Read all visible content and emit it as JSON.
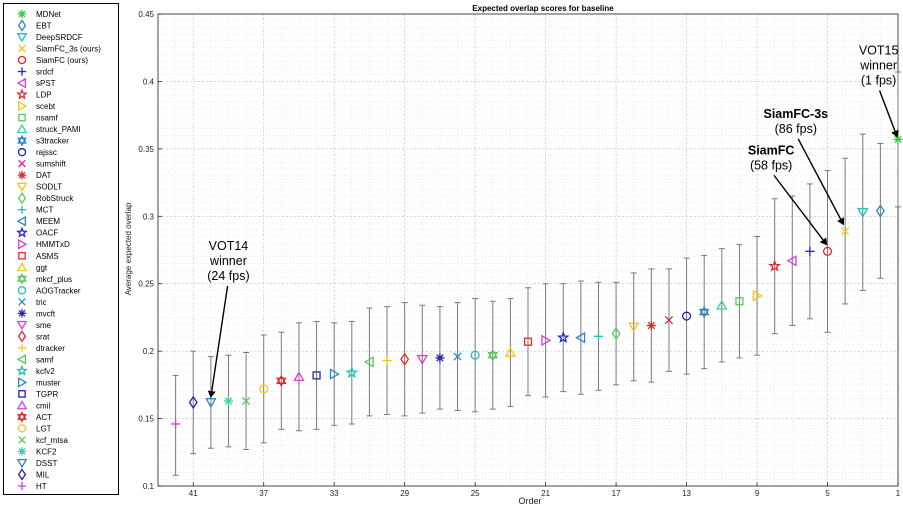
{
  "chart_data": {
    "type": "scatter",
    "title": "Expected overlap scores for baseline",
    "xlabel": "Order",
    "ylabel": "Average expected overlap",
    "xlim": [
      43,
      1
    ],
    "ylim": [
      0.1,
      0.45
    ],
    "x_ticks": [
      41,
      37,
      33,
      29,
      25,
      21,
      17,
      13,
      9,
      5,
      1
    ],
    "y_ticks": [
      0.1,
      0.15,
      0.2,
      0.25,
      0.3,
      0.35,
      0.4,
      0.45
    ],
    "grid": true,
    "legend_position": "outside-left",
    "series": [
      {
        "name": "MDNet",
        "marker": "asterisk",
        "color": "#33cc33",
        "order": 1,
        "value": 0.357,
        "lo": 0.307,
        "hi": 0.407
      },
      {
        "name": "EBT",
        "marker": "diamond",
        "color": "#2e86c1",
        "order": 2,
        "value": 0.304,
        "lo": 0.254,
        "hi": 0.354
      },
      {
        "name": "DeepSRDCF",
        "marker": "triangle-down",
        "color": "#17c3b2",
        "order": 3,
        "value": 0.303,
        "lo": 0.245,
        "hi": 0.361
      },
      {
        "name": "SiamFC_3s (ours)",
        "marker": "x",
        "color": "#f5c518",
        "order": 4,
        "value": 0.289,
        "lo": 0.235,
        "hi": 0.343
      },
      {
        "name": "SiamFC (ours)",
        "marker": "circle",
        "color": "#e5262b",
        "order": 5,
        "value": 0.274,
        "lo": 0.214,
        "hi": 0.334
      },
      {
        "name": "srdcf",
        "marker": "plus",
        "color": "#2424d6",
        "order": 6,
        "value": 0.274,
        "lo": 0.224,
        "hi": 0.324
      },
      {
        "name": "sPST",
        "marker": "triangle-left",
        "color": "#d63ed6",
        "order": 7,
        "value": 0.267,
        "lo": 0.219,
        "hi": 0.315
      },
      {
        "name": "LDP",
        "marker": "star",
        "color": "#e5262b",
        "order": 8,
        "value": 0.263,
        "lo": 0.213,
        "hi": 0.313
      },
      {
        "name": "scebt",
        "marker": "triangle-right",
        "color": "#f5c518",
        "order": 9,
        "value": 0.241,
        "lo": 0.197,
        "hi": 0.285
      },
      {
        "name": "nsamf",
        "marker": "square",
        "color": "#5cc85c",
        "order": 10,
        "value": 0.237,
        "lo": 0.195,
        "hi": 0.279
      },
      {
        "name": "struck_PAMI",
        "marker": "triangle-up",
        "color": "#33d1a6",
        "order": 11,
        "value": 0.234,
        "lo": 0.192,
        "hi": 0.276
      },
      {
        "name": "s3tracker",
        "marker": "hexagram",
        "color": "#2e86c1",
        "order": 12,
        "value": 0.229,
        "lo": 0.187,
        "hi": 0.271
      },
      {
        "name": "rajssc",
        "marker": "circle",
        "color": "#2424a8",
        "order": 13,
        "value": 0.226,
        "lo": 0.183,
        "hi": 0.269
      },
      {
        "name": "sumshift",
        "marker": "x",
        "color": "#d6246e",
        "order": 14,
        "value": 0.223,
        "lo": 0.185,
        "hi": 0.261
      },
      {
        "name": "DAT",
        "marker": "asterisk",
        "color": "#e5262b",
        "order": 15,
        "value": 0.219,
        "lo": 0.177,
        "hi": 0.261
      },
      {
        "name": "SODLT",
        "marker": "triangle-down",
        "color": "#f5c518",
        "order": 16,
        "value": 0.218,
        "lo": 0.178,
        "hi": 0.258
      },
      {
        "name": "RobStruck",
        "marker": "diamond",
        "color": "#5cc85c",
        "order": 17,
        "value": 0.213,
        "lo": 0.175,
        "hi": 0.251
      },
      {
        "name": "MCT",
        "marker": "plus",
        "color": "#17c3b2",
        "order": 18,
        "value": 0.211,
        "lo": 0.171,
        "hi": 0.251
      },
      {
        "name": "MEEM",
        "marker": "triangle-left",
        "color": "#2e86c1",
        "order": 19,
        "value": 0.21,
        "lo": 0.168,
        "hi": 0.252
      },
      {
        "name": "OACF",
        "marker": "star",
        "color": "#2424d6",
        "order": 20,
        "value": 0.21,
        "lo": 0.17,
        "hi": 0.25
      },
      {
        "name": "HMMTxD",
        "marker": "triangle-right",
        "color": "#d63ed6",
        "order": 21,
        "value": 0.208,
        "lo": 0.166,
        "hi": 0.25
      },
      {
        "name": "ASMS",
        "marker": "square",
        "color": "#e5262b",
        "order": 22,
        "value": 0.207,
        "lo": 0.167,
        "hi": 0.247
      },
      {
        "name": "ggt",
        "marker": "triangle-up",
        "color": "#f5c518",
        "order": 23,
        "value": 0.199,
        "lo": 0.159,
        "hi": 0.239
      },
      {
        "name": "mkcf_plus",
        "marker": "hexagram",
        "color": "#5cc85c",
        "order": 24,
        "value": 0.197,
        "lo": 0.157,
        "hi": 0.237
      },
      {
        "name": "AOGTracker",
        "marker": "circle",
        "color": "#17c3b2",
        "order": 25,
        "value": 0.197,
        "lo": 0.155,
        "hi": 0.239
      },
      {
        "name": "tric",
        "marker": "x",
        "color": "#2e86c1",
        "order": 26,
        "value": 0.196,
        "lo": 0.156,
        "hi": 0.236
      },
      {
        "name": "mvcft",
        "marker": "asterisk",
        "color": "#2424a8",
        "order": 27,
        "value": 0.195,
        "lo": 0.157,
        "hi": 0.233
      },
      {
        "name": "sme",
        "marker": "triangle-down",
        "color": "#d63ed6",
        "order": 28,
        "value": 0.194,
        "lo": 0.154,
        "hi": 0.234
      },
      {
        "name": "srat",
        "marker": "diamond",
        "color": "#e5262b",
        "order": 29,
        "value": 0.194,
        "lo": 0.152,
        "hi": 0.236
      },
      {
        "name": "dtracker",
        "marker": "plus",
        "color": "#f5c518",
        "order": 30,
        "value": 0.193,
        "lo": 0.153,
        "hi": 0.233
      },
      {
        "name": "samf",
        "marker": "triangle-left",
        "color": "#5cc85c",
        "order": 31,
        "value": 0.192,
        "lo": 0.152,
        "hi": 0.232
      },
      {
        "name": "kcfv2",
        "marker": "star",
        "color": "#17c3b2",
        "order": 32,
        "value": 0.184,
        "lo": 0.146,
        "hi": 0.222
      },
      {
        "name": "muster",
        "marker": "triangle-right",
        "color": "#2e86c1",
        "order": 33,
        "value": 0.183,
        "lo": 0.145,
        "hi": 0.221
      },
      {
        "name": "TGPR",
        "marker": "square",
        "color": "#2424a8",
        "order": 34,
        "value": 0.182,
        "lo": 0.142,
        "hi": 0.222
      },
      {
        "name": "cmil",
        "marker": "triangle-up",
        "color": "#d63ed6",
        "order": 35,
        "value": 0.181,
        "lo": 0.141,
        "hi": 0.221
      },
      {
        "name": "ACT",
        "marker": "hexagram",
        "color": "#e5262b",
        "order": 36,
        "value": 0.178,
        "lo": 0.142,
        "hi": 0.214
      },
      {
        "name": "LGT",
        "marker": "circle",
        "color": "#f5c518",
        "order": 37,
        "value": 0.172,
        "lo": 0.132,
        "hi": 0.212
      },
      {
        "name": "kcf_mtsa",
        "marker": "x",
        "color": "#5cc85c",
        "order": 38,
        "value": 0.163,
        "lo": 0.127,
        "hi": 0.199
      },
      {
        "name": "KCF2",
        "marker": "asterisk",
        "color": "#33d1a6",
        "order": 39,
        "value": 0.163,
        "lo": 0.129,
        "hi": 0.197
      },
      {
        "name": "DSST",
        "marker": "triangle-down",
        "color": "#2e86c1",
        "order": 40,
        "value": 0.162,
        "lo": 0.128,
        "hi": 0.196
      },
      {
        "name": "MIL",
        "marker": "diamond",
        "color": "#2424a8",
        "order": 41,
        "value": 0.162,
        "lo": 0.124,
        "hi": 0.2
      },
      {
        "name": "HT",
        "marker": "plus",
        "color": "#d63ed6",
        "order": 42,
        "value": 0.146,
        "lo": 0.108,
        "hi": 0.182
      }
    ],
    "annotations": [
      {
        "lines": [
          "VOT15",
          "winner",
          "(1 fps)"
        ],
        "bold": false,
        "text_order": 2.1,
        "text_value": 0.42,
        "arrow_to_order": 1.05,
        "arrow_to_value": 0.359
      },
      {
        "lines": [
          "SiamFC-3s",
          "(86 fps)"
        ],
        "bold_first": true,
        "text_order": 6.8,
        "text_value": 0.373,
        "arrow_to_order": 4.1,
        "arrow_to_value": 0.294
      },
      {
        "lines": [
          "SiamFC",
          "(58 fps)"
        ],
        "bold_first": true,
        "text_order": 8.2,
        "text_value": 0.346,
        "arrow_to_order": 5.05,
        "arrow_to_value": 0.279
      },
      {
        "lines": [
          "VOT14",
          "winner",
          "(24 fps)"
        ],
        "bold": false,
        "text_order": 39.0,
        "text_value": 0.275,
        "arrow_to_order": 40.0,
        "arrow_to_value": 0.166
      }
    ]
  }
}
